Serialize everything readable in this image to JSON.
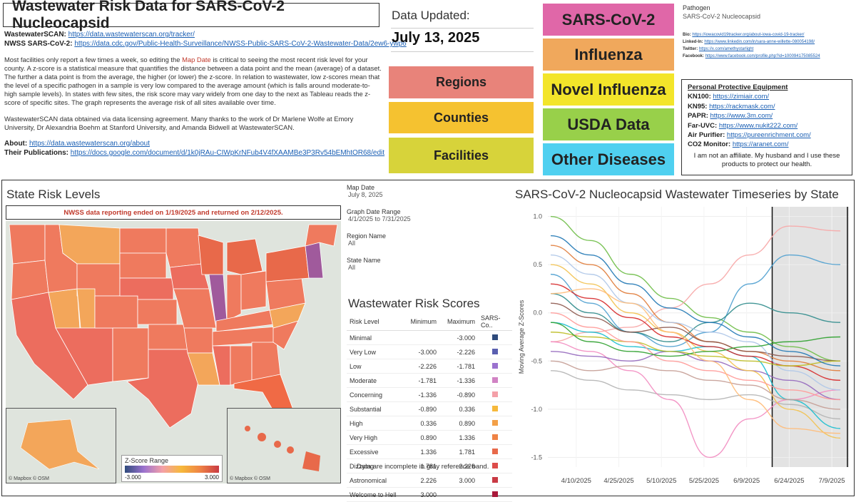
{
  "header": {
    "title": "Wastewater Risk Data for  SARS-CoV-2 Nucleocapsid",
    "wastewaterscan_label": "WastewaterSCAN:",
    "wastewaterscan_url": "https://data.wastewaterscan.org/tracker/",
    "nwss_label": "NWSS SARS-CoV-2:",
    "nwss_url": "https://data.cdc.gov/Public-Health-Surveillance/NWSS-Public-SARS-CoV-2-Wastewater-Data/2ew6-ywp6",
    "para1_a": "Most facilities only report a few times a week, so editing the ",
    "para1_link": "Map Date",
    "para1_b": " is critical to seeing the most recent risk level for your county. A z-score is a statistical measure that quantifies the distance between a data point and the mean (average) of a dataset. The further a data point is from the average, the higher (or lower) the z-score. In relation to wastewater, low z-scores mean that the level of a specific pathogen in a sample is very low compared to the average amount (which is falls around moderate-to-high sample levels). In states with few sites, the risk score may vary widely from one day to the next as Tableau reads the z-score of specific sites. The graph represents the average risk of all sites available over time.",
    "para2": "WastewaterSCAN data obtained via data licensing agreement. Many thanks to the work of Dr Marlene Wolfe at Emory University, Dr Alexandria Boehm at Stanford University, and Amanda Bidwell at WastewaterSCAN.",
    "about_label": "About:",
    "about_url": "https://data.wastewaterscan.org/about",
    "pubs_label": "Their Publications:",
    "pubs_url": "https://docs.google.com/document/d/1k0jRAu-CIWpKrNFub4V4fXAAMBe3P3Rv54bEMhtOR68/edit"
  },
  "updated": {
    "label": "Data Updated:",
    "date": "July 13, 2025"
  },
  "nav": {
    "regions": "Regions",
    "counties": "Counties",
    "facilities": "Facilities",
    "sars": "SARS-CoV-2",
    "influenza": "Influenza",
    "novel_influenza": "Novel Influenza",
    "usda": "USDA Data",
    "other": "Other Diseases"
  },
  "colors": {
    "regions": "#e8837a",
    "counties": "#f5c230",
    "facilities": "#d7d33a",
    "sars": "#e067a8",
    "influenza": "#f0a85c",
    "novel_influenza": "#f3e52a",
    "usda": "#98d04a",
    "other": "#4fd0f0"
  },
  "pathogen": {
    "label": "Pathogen",
    "value": "SARS-CoV-2 Nucleocapsid"
  },
  "social": {
    "bio_label": "Bio:",
    "bio_url": "https://iowacovid19tracker.org/about-iowa-covid-19-tracker/",
    "linkedin_label": "Linked-In:",
    "linkedin_url": "https://www.linkedin.com/in/sara-anne-willette-080054198/",
    "twitter_label": "Twitter:",
    "twitter_url": "https://x.com/amethystarlight",
    "facebook_label": "Facebook:",
    "facebook_url": "https://www.facebook.com/profile.php?id=100094175085524"
  },
  "ppe": {
    "title": "Personal Protective Equipment",
    "items": [
      {
        "label": "KN100:",
        "url": "https://zimiair.com/"
      },
      {
        "label": "KN95:",
        "url": "https://rackmask.com/"
      },
      {
        "label": "PAPR:",
        "url": "https://www.3m.com/"
      },
      {
        "label": "Far-UVC:",
        "url": "https://www.nukit222.com/"
      },
      {
        "label": "Air Purifier:",
        "url": "https://pureenrichment.com/"
      },
      {
        "label": "CO2 Monitor:",
        "url": "https://aranet.com/"
      }
    ],
    "note": "I am not an affiliate. My husband and I use these products to protect our health."
  },
  "map": {
    "title": "State Risk Levels",
    "notice": "NWSS data reporting ended on 1/19/2025 and returned on 2/12/2025.",
    "credit": "© Mapbox © OSM",
    "legend_title": "Z-Score Range",
    "legend_min": "-3.000",
    "legend_max": "3.000"
  },
  "filters": {
    "map_date_label": "Map Date",
    "map_date": "July 8, 2025",
    "graph_range_label": "Graph Date Range",
    "graph_range": "4/1/2025 to 7/31/2025",
    "region_label": "Region Name",
    "region": "All",
    "state_label": "State Name",
    "state": "All"
  },
  "risk_table": {
    "title": "Wastewater Risk Scores",
    "headers": [
      "Risk Level",
      "Minimum",
      "Maximum",
      "SARS-Co.."
    ],
    "rows": [
      {
        "level": "Minimal",
        "min": "",
        "max": "-3.000",
        "color": "#2f4b7c"
      },
      {
        "level": "Very Low",
        "min": "-3.000",
        "max": "-2.226",
        "color": "#5a5fb0"
      },
      {
        "level": "Low",
        "min": "-2.226",
        "max": "-1.781",
        "color": "#9b72cf"
      },
      {
        "level": "Moderate",
        "min": "-1.781",
        "max": "-1.336",
        "color": "#d183c4"
      },
      {
        "level": "Concerning",
        "min": "-1.336",
        "max": "-0.890",
        "color": "#f4a0a8"
      },
      {
        "level": "Substantial",
        "min": "-0.890",
        "max": "0.336",
        "color": "#f6b93b"
      },
      {
        "level": "High",
        "min": "0.336",
        "max": "0.890",
        "color": "#f3a047"
      },
      {
        "level": "Very High",
        "min": "0.890",
        "max": "1.336",
        "color": "#ef8345"
      },
      {
        "level": "Excessive",
        "min": "1.336",
        "max": "1.781",
        "color": "#e8694a"
      },
      {
        "level": "Dizzying",
        "min": "1.781",
        "max": "2.226",
        "color": "#dd4c4a"
      },
      {
        "level": "Astronomical",
        "min": "2.226",
        "max": "3.000",
        "color": "#c93a44"
      },
      {
        "level": "Welcome to Hell",
        "min": "3.000",
        "max": "",
        "color": "#a8183a"
      }
    ],
    "footnote": "Data are incomplete in gray reference band."
  },
  "chart_data": {
    "type": "line",
    "title": "SARS-CoV-2 Nucleocapsid Wastewater Timeseries by State",
    "xlabel": "",
    "ylabel": "Moving Average Z-Scores",
    "x_ticks": [
      "4/10/2025",
      "4/25/2025",
      "5/10/2025",
      "5/25/2025",
      "6/9/2025",
      "6/24/2025",
      "7/9/2025"
    ],
    "y_ticks": [
      1.0,
      0.5,
      0.0,
      -0.5,
      -1.0,
      -1.5
    ],
    "ylim": [
      -1.6,
      1.1
    ],
    "xlim": [
      "3/31/2025",
      "7/15/2025"
    ],
    "gray_band": [
      "6/18/2025",
      "7/15/2025"
    ],
    "grid": true,
    "series_x": [
      "4/1/2025",
      "4/15/2025",
      "4/29/2025",
      "5/13/2025",
      "5/27/2025",
      "6/10/2025",
      "6/24/2025",
      "7/12/2025"
    ],
    "series": [
      {
        "color": "#6dbd45",
        "values": [
          1.0,
          0.75,
          0.4,
          0.15,
          -0.05,
          -0.2,
          -0.35,
          -0.5
        ]
      },
      {
        "color": "#f7a6a6",
        "values": [
          -0.3,
          -0.2,
          -0.15,
          0.05,
          0.3,
          0.6,
          0.9,
          0.85
        ]
      },
      {
        "color": "#4c9fcf",
        "values": [
          0.4,
          0.1,
          -0.2,
          -0.35,
          -0.2,
          0.3,
          0.6,
          0.5
        ]
      },
      {
        "color": "#e07b39",
        "values": [
          0.7,
          0.5,
          0.2,
          -0.1,
          -0.3,
          -0.4,
          -0.5,
          -0.6
        ]
      },
      {
        "color": "#b3b3b3",
        "values": [
          -0.6,
          -0.7,
          -0.8,
          -0.85,
          -0.9,
          -0.85,
          -0.95,
          -1.1
        ]
      },
      {
        "color": "#f28bc0",
        "values": [
          -0.3,
          -0.4,
          -0.6,
          -0.9,
          -1.5,
          -1.1,
          -0.9,
          -0.8
        ]
      },
      {
        "color": "#2e8b8b",
        "values": [
          0.2,
          0.0,
          -0.2,
          -0.3,
          -0.1,
          0.1,
          0.0,
          -0.1
        ]
      },
      {
        "color": "#9467bd",
        "values": [
          -0.4,
          -0.45,
          -0.5,
          -0.4,
          -0.5,
          -0.6,
          -0.7,
          -0.9
        ]
      },
      {
        "color": "#f2c14e",
        "values": [
          0.5,
          0.3,
          0.0,
          -0.2,
          -0.4,
          -0.6,
          -1.0,
          -1.3
        ]
      },
      {
        "color": "#8c564b",
        "values": [
          0.1,
          -0.05,
          -0.2,
          -0.15,
          -0.3,
          -0.4,
          -0.45,
          -0.5
        ]
      },
      {
        "color": "#17becf",
        "values": [
          -0.1,
          -0.2,
          -0.35,
          -0.4,
          -0.35,
          -0.45,
          -0.9,
          -1.2
        ]
      },
      {
        "color": "#d62728",
        "values": [
          0.3,
          0.15,
          -0.05,
          -0.25,
          -0.35,
          -0.45,
          -0.55,
          -0.7
        ]
      },
      {
        "color": "#aec7e8",
        "values": [
          0.6,
          0.4,
          0.1,
          -0.1,
          -0.2,
          -0.3,
          -0.6,
          -0.8
        ]
      },
      {
        "color": "#bcbd22",
        "values": [
          -0.2,
          -0.25,
          -0.3,
          -0.4,
          -0.45,
          -0.5,
          -0.55,
          -0.5
        ]
      },
      {
        "color": "#ff9896",
        "values": [
          0.0,
          -0.15,
          -0.3,
          -0.5,
          -0.6,
          -0.7,
          -0.8,
          -0.9
        ]
      },
      {
        "color": "#2ca02c",
        "values": [
          -0.1,
          -0.3,
          -0.4,
          -0.45,
          -0.4,
          -0.35,
          -0.3,
          -0.25
        ]
      },
      {
        "color": "#1f77b4",
        "values": [
          0.8,
          0.6,
          0.3,
          0.05,
          -0.1,
          -0.25,
          -0.4,
          -0.55
        ]
      },
      {
        "color": "#c49c94",
        "values": [
          -0.5,
          -0.6,
          -0.55,
          -0.6,
          -0.7,
          -0.75,
          -0.9,
          -1.0
        ]
      },
      {
        "color": "#ffbb78",
        "values": [
          0.2,
          0.25,
          0.1,
          -0.2,
          -0.5,
          -0.9,
          -1.2,
          -1.25
        ]
      }
    ]
  }
}
